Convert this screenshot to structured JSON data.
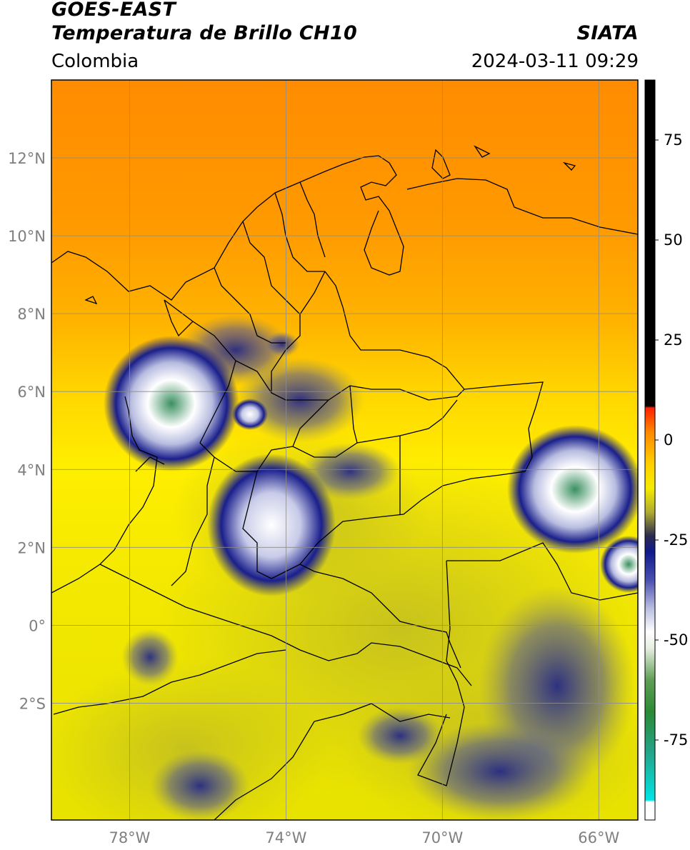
{
  "header": {
    "title_line1": "GOES-EAST",
    "title_line2": "Temperatura de Brillo CH10",
    "region": "Colombia",
    "source": "SIATA",
    "datetime": "2024-03-11 09:29"
  },
  "map": {
    "lon_range": [
      -80,
      -65
    ],
    "lat_range": [
      -5,
      14
    ],
    "lon_ticks": [
      {
        "value": -78,
        "label": "78°W"
      },
      {
        "value": -74,
        "label": "74°W"
      },
      {
        "value": -70,
        "label": "70°W"
      },
      {
        "value": -66,
        "label": "66°W"
      }
    ],
    "lat_ticks": [
      {
        "value": 12,
        "label": "12°N"
      },
      {
        "value": 10,
        "label": "10°N"
      },
      {
        "value": 8,
        "label": "8°N"
      },
      {
        "value": 6,
        "label": "6°N"
      },
      {
        "value": 4,
        "label": "4°N"
      },
      {
        "value": 2,
        "label": "2°N"
      },
      {
        "value": 0,
        "label": "0°"
      },
      {
        "value": -2,
        "label": "2°S"
      }
    ],
    "gridlines": true,
    "colors": {
      "warm_orange": "#ff8c00",
      "orange": "#ffa800",
      "yellow": "#ffee00",
      "olive": "#c9c41c",
      "navy": "#1a1f8c",
      "white": "#ffffff",
      "green": "#2f8a4a"
    }
  },
  "colorbar": {
    "range": [
      -95,
      90
    ],
    "ticks": [
      {
        "value": 75,
        "label": "75"
      },
      {
        "value": 50,
        "label": "50"
      },
      {
        "value": 25,
        "label": "25"
      },
      {
        "value": 0,
        "label": "0"
      },
      {
        "value": -25,
        "label": "-25"
      },
      {
        "value": -50,
        "label": "-50"
      },
      {
        "value": -75,
        "label": "-75"
      }
    ],
    "stops": [
      {
        "value": -95,
        "color": "#ffffff"
      },
      {
        "value": -90.5,
        "color": "#ffffff"
      },
      {
        "value": -90,
        "color": "#00e5e5"
      },
      {
        "value": -78,
        "color": "#23a488"
      },
      {
        "value": -68,
        "color": "#2b8a35"
      },
      {
        "value": -60,
        "color": "#5f9e55"
      },
      {
        "value": -52,
        "color": "#e6efe2"
      },
      {
        "value": -48,
        "color": "#ffffff"
      },
      {
        "value": -42,
        "color": "#b8bde0"
      },
      {
        "value": -35,
        "color": "#4a4fb0"
      },
      {
        "value": -28,
        "color": "#101a8c"
      },
      {
        "value": -24,
        "color": "#2a2a50"
      },
      {
        "value": -18,
        "color": "#b0ac30"
      },
      {
        "value": -12,
        "color": "#f5ec00"
      },
      {
        "value": -6,
        "color": "#ffd000"
      },
      {
        "value": 2,
        "color": "#ff8800"
      },
      {
        "value": 8,
        "color": "#ff2200"
      },
      {
        "value": 8.5,
        "color": "#000000"
      },
      {
        "value": 90,
        "color": "#000000"
      }
    ]
  }
}
